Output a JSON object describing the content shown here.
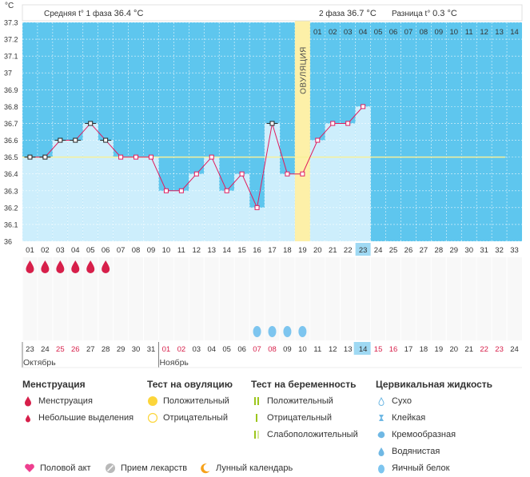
{
  "chart_data": {
    "type": "line",
    "title": "",
    "ylabel": "°C",
    "ylim": [
      36,
      37.3
    ],
    "y_ticks": [
      "37.3",
      "37.2",
      "37.1",
      "37",
      "36.9",
      "36.8",
      "36.7",
      "36.6",
      "36.5",
      "36.4",
      "36.3",
      "36.2",
      "36.1",
      "36"
    ],
    "y_tick_values": [
      37.3,
      37.2,
      37.1,
      37.0,
      36.9,
      36.8,
      36.7,
      36.6,
      36.5,
      36.4,
      36.3,
      36.2,
      36.1,
      36.0
    ],
    "cycle_days": [
      "01",
      "02",
      "03",
      "04",
      "05",
      "06",
      "07",
      "08",
      "09",
      "10",
      "11",
      "12",
      "13",
      "14",
      "15",
      "16",
      "17",
      "18",
      "19",
      "20",
      "21",
      "22",
      "23",
      "24",
      "25",
      "26",
      "27",
      "28",
      "29",
      "30",
      "31",
      "32",
      "33"
    ],
    "temperatures": [
      36.5,
      36.5,
      36.6,
      36.6,
      36.7,
      36.6,
      36.5,
      36.5,
      36.5,
      36.3,
      36.3,
      36.4,
      36.5,
      36.3,
      36.4,
      36.2,
      36.7,
      36.4,
      36.4,
      36.6,
      36.7,
      36.7,
      36.8
    ],
    "black_markers": [
      1,
      2,
      3,
      4,
      5,
      6,
      17
    ],
    "cover_line": 36.5,
    "ovulation_day": 19,
    "ovulation_label": "ОВУЛЯЦИЯ",
    "phase2_days": [
      "01",
      "02",
      "03",
      "04",
      "05",
      "06",
      "07",
      "08",
      "09",
      "10",
      "11",
      "12",
      "13",
      "14"
    ],
    "current_day": 23,
    "menstruation_days": [
      1,
      2,
      3,
      4,
      5,
      6
    ],
    "egg_white_days": [
      16,
      17,
      18,
      19
    ],
    "dates": [
      "23",
      "24",
      "25",
      "26",
      "27",
      "28",
      "29",
      "30",
      "31",
      "01",
      "02",
      "03",
      "04",
      "05",
      "06",
      "07",
      "08",
      "09",
      "10",
      "11",
      "12",
      "13",
      "14",
      "15",
      "16",
      "17",
      "18",
      "19",
      "20",
      "21",
      "22",
      "23",
      "24"
    ],
    "red_dates": [
      3,
      4,
      10,
      11,
      16,
      17,
      24,
      25,
      31,
      32
    ],
    "today_date_index": 23,
    "months": [
      {
        "label": "Октябрь",
        "start": 1
      },
      {
        "label": "Ноябрь",
        "start": 10
      }
    ],
    "phase1_label": "Средняя t° 1 фаза",
    "phase1_value": "36.4 °C",
    "phase2_label": "2 фаза",
    "phase2_value": "36.7 °C",
    "diff_label": "Разница t°",
    "diff_value": "0.3 °C",
    "colors": {
      "plot_bg": "#5ec6ee",
      "bar": "#cdeefc",
      "line": "#e01c5d",
      "ovulation": "#fdf0a8",
      "cover": "#f7f09a",
      "today": "#9fd9f3",
      "red": "#d71f4a",
      "drop_blue": "#7dc5ef"
    }
  },
  "legend": {
    "menstruation": {
      "title": "Менструация",
      "items": [
        "Менструация",
        "Небольшие выделения"
      ]
    },
    "ovulation_test": {
      "title": "Тест на овуляцию",
      "items": [
        "Положительный",
        "Отрицательный"
      ]
    },
    "pregnancy_test": {
      "title": "Тест на беременность",
      "items": [
        "Положительный",
        "Отрицательный",
        "Слабоположительный"
      ]
    },
    "cervical": {
      "title": "Цервикальная жидкость",
      "items": [
        "Сухо",
        "Клейкая",
        "Кремообразная",
        "Водянистая",
        "Яичный белок"
      ]
    },
    "bottom": [
      "Половой акт",
      "Прием лекарств",
      "Лунный календарь"
    ]
  }
}
